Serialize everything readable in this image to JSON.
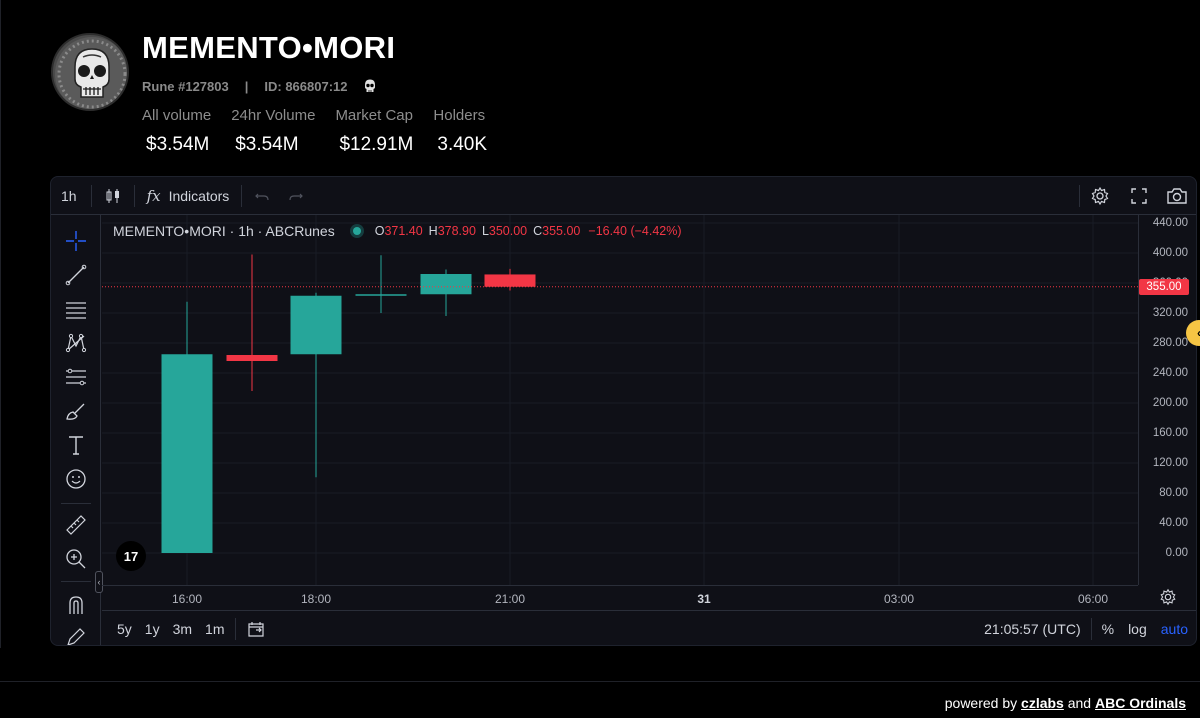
{
  "header": {
    "title": "MEMENTO•MORI",
    "rune": "Rune #127803",
    "separator": "|",
    "id": "ID: 866807:12",
    "stats": [
      {
        "label": "All volume",
        "value": "$3.54M"
      },
      {
        "label": "24hr Volume",
        "value": "$3.54M"
      },
      {
        "label": "Market Cap",
        "value": "$12.91M"
      },
      {
        "label": "Holders",
        "value": "3.40K"
      }
    ]
  },
  "toolbar": {
    "interval": "1h",
    "indicators_label": "Indicators"
  },
  "legend": {
    "symbol": "MEMENTO•MORI · 1h · ABCRunes",
    "o_label": "O",
    "o_value": "371.40",
    "h_label": "H",
    "h_value": "378.90",
    "l_label": "L",
    "l_value": "350.00",
    "c_label": "C",
    "c_value": "355.00",
    "change": "−16.40 (−4.42%)"
  },
  "current_price": "355.00",
  "colors": {
    "up": "#26a69a",
    "down": "#f23645",
    "accent": "#2962ff"
  },
  "chart_data": {
    "type": "candlestick",
    "ylim": [
      -20,
      450
    ],
    "y_ticks": [
      "440.00",
      "400.00",
      "360.00",
      "320.00",
      "280.00",
      "240.00",
      "200.00",
      "160.00",
      "120.00",
      "80.00",
      "40.00",
      "0.00"
    ],
    "x_ticks": [
      "16:00",
      "18:00",
      "21:00",
      "31",
      "03:00",
      "06:00"
    ],
    "candles": [
      {
        "t": "16:00",
        "open": 0,
        "high": 335,
        "low": 0,
        "close": 265
      },
      {
        "t": "17:00",
        "open": 264,
        "high": 398,
        "low": 216,
        "close": 256
      },
      {
        "t": "18:00",
        "open": 265,
        "high": 347,
        "low": 101,
        "close": 343
      },
      {
        "t": "19:00",
        "open": 343,
        "high": 397,
        "low": 320,
        "close": 345
      },
      {
        "t": "20:00",
        "open": 345,
        "high": 378,
        "low": 316,
        "close": 372
      },
      {
        "t": "21:00",
        "open": 371.4,
        "high": 378.9,
        "low": 350,
        "close": 355
      }
    ]
  },
  "bottombar": {
    "ranges": [
      "5y",
      "1y",
      "3m",
      "1m"
    ],
    "time": "21:05:57 (UTC)",
    "percent": "%",
    "log": "log",
    "auto": "auto"
  },
  "footer": {
    "prefix": "powered by",
    "link1": "czlabs",
    "middle": "and",
    "link2": "ABC Ordinals"
  },
  "tv_logo": "17"
}
